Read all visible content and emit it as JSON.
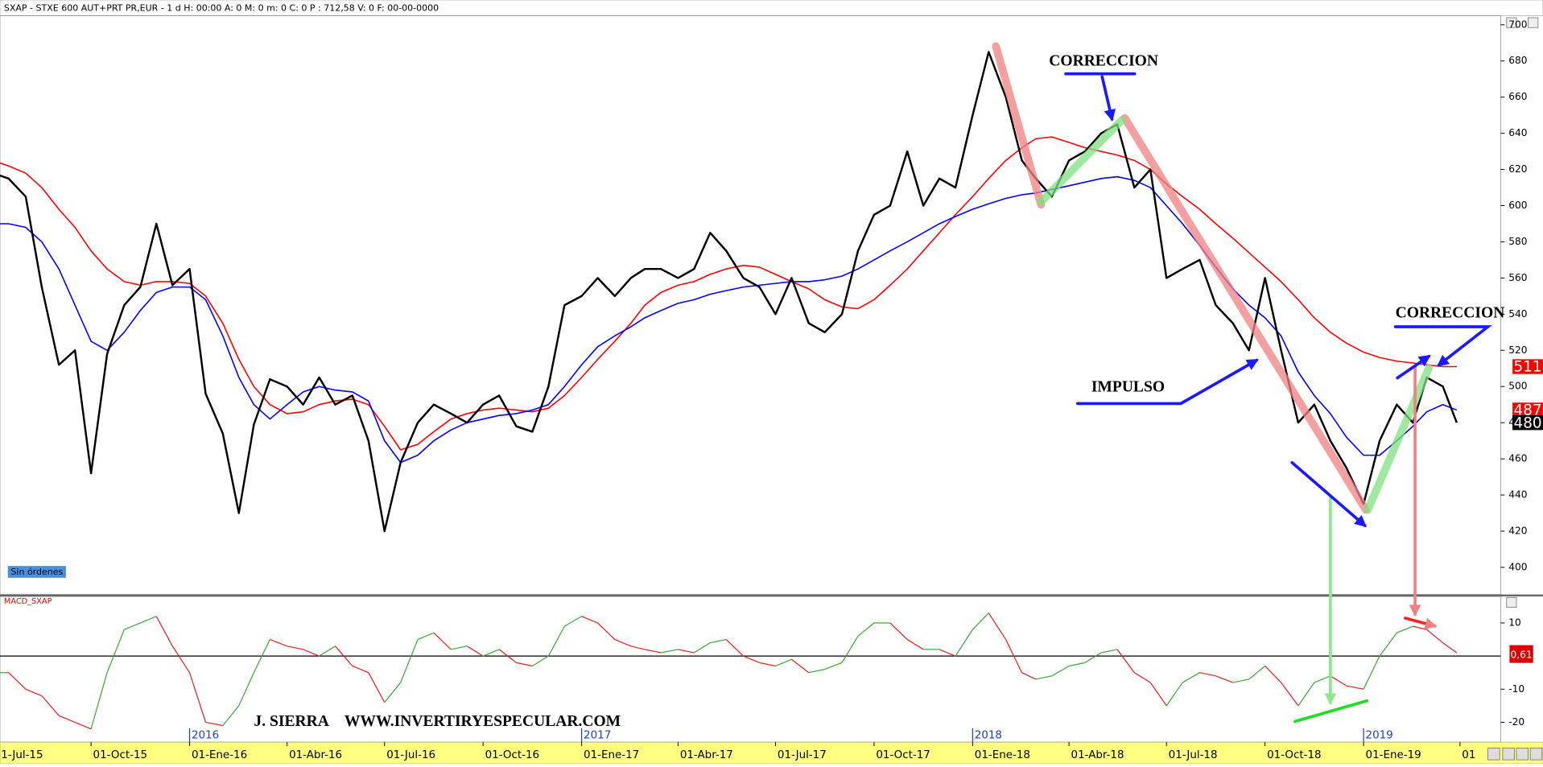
{
  "chart_data": [
    {
      "type": "line",
      "title": "SXAP - STXE 600 AUT+PRT PR,EUR - 1 d H: 00:00 A: 0 M: 0 m: 0 C: 0 P : 712,58 V: 0 F: 00-00-0000",
      "status": "Sin órdenes",
      "annotations": [
        "CORRECCION",
        "IMPULSO",
        "CORRECCION"
      ],
      "xlim": [
        "2015-07-08",
        "2019-05-09"
      ],
      "ylim": [
        385,
        705
      ],
      "yticks": [
        400,
        420,
        440,
        460,
        480,
        500,
        520,
        540,
        560,
        580,
        600,
        620,
        640,
        660,
        680,
        700
      ],
      "x": [
        "2015-07-01",
        "2015-07-16",
        "2015-08-01",
        "2015-08-16",
        "2015-09-01",
        "2015-09-16",
        "2015-10-01",
        "2015-10-16",
        "2015-11-01",
        "2015-11-16",
        "2015-12-01",
        "2015-12-16",
        "2016-01-01",
        "2016-01-16",
        "2016-02-01",
        "2016-02-16",
        "2016-03-01",
        "2016-03-16",
        "2016-04-01",
        "2016-04-16",
        "2016-05-01",
        "2016-05-16",
        "2016-06-01",
        "2016-06-16",
        "2016-07-01",
        "2016-07-16",
        "2016-08-01",
        "2016-08-16",
        "2016-09-01",
        "2016-09-16",
        "2016-10-01",
        "2016-10-16",
        "2016-11-01",
        "2016-11-16",
        "2016-12-01",
        "2016-12-16",
        "2017-01-01",
        "2017-01-16",
        "2017-02-01",
        "2017-02-16",
        "2017-03-01",
        "2017-03-16",
        "2017-04-01",
        "2017-04-16",
        "2017-05-01",
        "2017-05-16",
        "2017-06-01",
        "2017-06-16",
        "2017-07-01",
        "2017-07-16",
        "2017-08-01",
        "2017-08-16",
        "2017-09-01",
        "2017-09-16",
        "2017-10-01",
        "2017-10-16",
        "2017-11-01",
        "2017-11-16",
        "2017-12-01",
        "2017-12-16",
        "2018-01-01",
        "2018-01-16",
        "2018-02-01",
        "2018-02-16",
        "2018-03-01",
        "2018-03-16",
        "2018-04-01",
        "2018-04-16",
        "2018-05-01",
        "2018-05-16",
        "2018-06-01",
        "2018-06-16",
        "2018-07-01",
        "2018-07-16",
        "2018-08-01",
        "2018-08-16",
        "2018-09-01",
        "2018-09-16",
        "2018-10-01",
        "2018-10-16",
        "2018-11-01",
        "2018-11-16",
        "2018-12-01",
        "2018-12-16",
        "2019-01-01",
        "2019-01-16",
        "2019-02-01",
        "2019-02-16",
        "2019-03-01",
        "2019-03-16",
        "2019-03-29"
      ],
      "series": [
        {
          "color": "#ff0000",
          "width": 1.3,
          "values": [
            625,
            622,
            618,
            610,
            598,
            588,
            575,
            565,
            558,
            556,
            558,
            558,
            557,
            550,
            535,
            515,
            500,
            490,
            485,
            486,
            490,
            492,
            493,
            490,
            478,
            465,
            468,
            475,
            482,
            485,
            487,
            488,
            487,
            486,
            488,
            495,
            505,
            515,
            525,
            535,
            545,
            552,
            556,
            558,
            562,
            565,
            567,
            566,
            562,
            558,
            554,
            548,
            544,
            543,
            548,
            556,
            565,
            575,
            585,
            595,
            605,
            615,
            625,
            632,
            637,
            638,
            635,
            632,
            630,
            628,
            625,
            620,
            612,
            605,
            598,
            590,
            582,
            574,
            566,
            558,
            548,
            538,
            530,
            524,
            519,
            516,
            514,
            513,
            512,
            511,
            511
          ]
        },
        {
          "color": "#0000ff",
          "width": 1.3,
          "values": [
            590,
            590,
            588,
            580,
            565,
            545,
            525,
            520,
            530,
            542,
            552,
            555,
            555,
            548,
            528,
            505,
            490,
            482,
            490,
            497,
            500,
            498,
            497,
            492,
            470,
            458,
            462,
            470,
            476,
            480,
            482,
            484,
            485,
            487,
            490,
            500,
            512,
            522,
            528,
            533,
            538,
            542,
            546,
            548,
            551,
            553,
            555,
            556,
            557,
            558,
            558,
            559,
            561,
            565,
            570,
            575,
            580,
            585,
            590,
            594,
            598,
            601,
            604,
            606,
            607,
            609,
            611,
            613,
            615,
            616,
            614,
            610,
            600,
            590,
            578,
            566,
            554,
            545,
            538,
            528,
            508,
            495,
            485,
            472,
            462,
            462,
            470,
            478,
            486,
            490,
            487
          ]
        },
        {
          "color": "#000000",
          "width": 2,
          "values": [
            618,
            615,
            605,
            555,
            512,
            520,
            452,
            518,
            545,
            555,
            590,
            556,
            565,
            496,
            474,
            430,
            479,
            504,
            500,
            490,
            505,
            490,
            495,
            470,
            420,
            458,
            480,
            490,
            485,
            480,
            490,
            495,
            478,
            475,
            500,
            545,
            550,
            560,
            550,
            560,
            565,
            565,
            560,
            565,
            585,
            575,
            560,
            555,
            540,
            560,
            535,
            530,
            540,
            575,
            595,
            600,
            630,
            600,
            615,
            610,
            650,
            685,
            660,
            625,
            615,
            605,
            625,
            630,
            640,
            645,
            610,
            620,
            560,
            565,
            570,
            545,
            535,
            520,
            560,
            520,
            480,
            490,
            470,
            455,
            435,
            470,
            490,
            480,
            505,
            500,
            480
          ]
        }
      ],
      "last_labels": [
        {
          "value": 511,
          "color": "#ff0000"
        },
        {
          "value": 487,
          "color": "#ff0000"
        },
        {
          "value": 480,
          "color": "#000000"
        }
      ]
    },
    {
      "type": "line",
      "title": "MACD_SXAP",
      "annotations": [
        "J. SIERRA",
        "WWW.INVERTIRYESPECULAR.COM"
      ],
      "xlim": [
        "2015-07-08",
        "2019-05-09"
      ],
      "ylim": [
        -26,
        18
      ],
      "yticks": [
        10,
        -10,
        -20
      ],
      "xticks": [
        {
          "value": "2015-07-01",
          "label": "1-Jul-15"
        },
        {
          "value": "2015-10-01",
          "label": "01-Oct-15"
        },
        {
          "value": "2016-01-01",
          "label": "01-Ene-16"
        },
        {
          "value": "2016-04-01",
          "label": "01-Abr-16"
        },
        {
          "value": "2016-07-01",
          "label": "01-Jul-16"
        },
        {
          "value": "2016-10-01",
          "label": "01-Oct-16"
        },
        {
          "value": "2017-01-01",
          "label": "01-Ene-17"
        },
        {
          "value": "2017-04-01",
          "label": "01-Abr-17"
        },
        {
          "value": "2017-07-01",
          "label": "01-Jul-17"
        },
        {
          "value": "2017-10-01",
          "label": "01-Oct-17"
        },
        {
          "value": "2018-01-01",
          "label": "01-Ene-18"
        },
        {
          "value": "2018-04-01",
          "label": "01-Abr-18"
        },
        {
          "value": "2018-07-01",
          "label": "01-Jul-18"
        },
        {
          "value": "2018-10-01",
          "label": "01-Oct-18"
        },
        {
          "value": "2019-01-01",
          "label": "01-Ene-19"
        },
        {
          "value": "2019-04-01",
          "label": "01"
        }
      ],
      "year_ticks": [
        {
          "value": "2016-01-01",
          "label": "2016"
        },
        {
          "value": "2017-01-01",
          "label": "2017"
        },
        {
          "value": "2018-01-01",
          "label": "2018"
        },
        {
          "value": "2019-01-01",
          "label": "2019"
        }
      ],
      "x": [
        "2015-07-01",
        "2015-07-16",
        "2015-08-01",
        "2015-08-16",
        "2015-09-01",
        "2015-09-16",
        "2015-10-01",
        "2015-10-16",
        "2015-11-01",
        "2015-11-16",
        "2015-12-01",
        "2015-12-16",
        "2016-01-01",
        "2016-01-16",
        "2016-02-01",
        "2016-02-16",
        "2016-03-01",
        "2016-03-16",
        "2016-04-01",
        "2016-04-16",
        "2016-05-01",
        "2016-05-16",
        "2016-06-01",
        "2016-06-16",
        "2016-07-01",
        "2016-07-16",
        "2016-08-01",
        "2016-08-16",
        "2016-09-01",
        "2016-09-16",
        "2016-10-01",
        "2016-10-16",
        "2016-11-01",
        "2016-11-16",
        "2016-12-01",
        "2016-12-16",
        "2017-01-01",
        "2017-01-16",
        "2017-02-01",
        "2017-02-16",
        "2017-03-01",
        "2017-03-16",
        "2017-04-01",
        "2017-04-16",
        "2017-05-01",
        "2017-05-16",
        "2017-06-01",
        "2017-06-16",
        "2017-07-01",
        "2017-07-16",
        "2017-08-01",
        "2017-08-16",
        "2017-09-01",
        "2017-09-16",
        "2017-10-01",
        "2017-10-16",
        "2017-11-01",
        "2017-11-16",
        "2017-12-01",
        "2017-12-16",
        "2018-01-01",
        "2018-01-16",
        "2018-02-01",
        "2018-02-16",
        "2018-03-01",
        "2018-03-16",
        "2018-04-01",
        "2018-04-16",
        "2018-05-01",
        "2018-05-16",
        "2018-06-01",
        "2018-06-16",
        "2018-07-01",
        "2018-07-16",
        "2018-08-01",
        "2018-08-16",
        "2018-09-01",
        "2018-09-16",
        "2018-10-01",
        "2018-10-16",
        "2018-11-01",
        "2018-11-16",
        "2018-12-01",
        "2018-12-16",
        "2019-01-01",
        "2019-01-16",
        "2019-02-01",
        "2019-02-16",
        "2019-03-01",
        "2019-03-16",
        "2019-03-29"
      ],
      "series": [
        {
          "rising_color": "#3aa83a",
          "falling_color": "#e82020",
          "width": 1,
          "values": [
            -5,
            -5,
            -10,
            -12,
            -18,
            -20,
            -22,
            -5,
            8,
            10,
            12,
            3,
            -5,
            -20,
            -21,
            -15,
            -5,
            5,
            3,
            2,
            0,
            3,
            -3,
            -5,
            -14,
            -8,
            5,
            7,
            2,
            3,
            0,
            2,
            -2,
            -3,
            0,
            9,
            12,
            10,
            5,
            3,
            2,
            1,
            2,
            1,
            4,
            5,
            0,
            -2,
            -3,
            -1,
            -5,
            -4,
            -2,
            6,
            10,
            10,
            5,
            2,
            2,
            0,
            8,
            13,
            5,
            -5,
            -7,
            -6,
            -3,
            -2,
            1,
            2,
            -5,
            -8,
            -15,
            -8,
            -5,
            -6,
            -8,
            -7,
            -3,
            -8,
            -15,
            -8,
            -6,
            -9,
            -10,
            0,
            7,
            9,
            8,
            4,
            1
          ]
        }
      ],
      "last_labels": [
        {
          "value": 0.61,
          "label": "0,61",
          "color": "#e00000"
        }
      ]
    }
  ]
}
